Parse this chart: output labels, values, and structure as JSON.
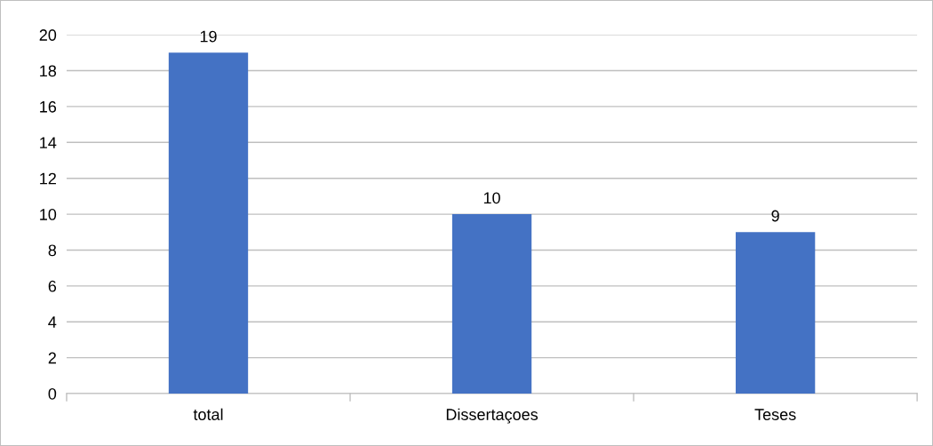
{
  "chart_data": {
    "type": "bar",
    "categories": [
      "total",
      "Dissertaçoes",
      "Teses"
    ],
    "values": [
      19,
      10,
      9
    ],
    "color": "#4472c4",
    "ylim": [
      0,
      20
    ],
    "yticks": [
      0,
      2,
      4,
      6,
      8,
      10,
      12,
      14,
      16,
      18,
      20
    ],
    "grid": "y",
    "data_labels": true
  }
}
